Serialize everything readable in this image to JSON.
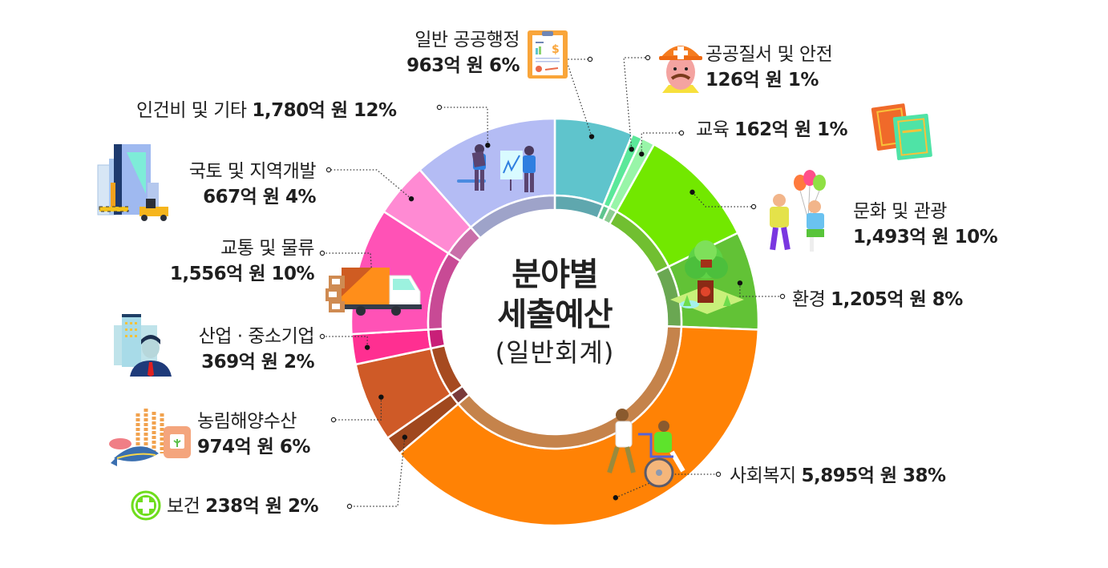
{
  "chart_data": {
    "type": "pie",
    "subtype": "donut",
    "title": "분야별 세출예산",
    "subtitle": "(일반회계)",
    "unit": "억 원",
    "start_angle_deg": 0,
    "direction": "clockwise",
    "categories": [
      "일반 공공행정",
      "공공질서 및 안전",
      "교육",
      "문화 및 관광",
      "환경",
      "사회복지",
      "보건",
      "농림해양수산",
      "산업·중소기업",
      "교통 및 물류",
      "국토 및 지역개발",
      "인건비 및 기타"
    ],
    "values": [
      963,
      126,
      162,
      1493,
      1205,
      5895,
      238,
      974,
      369,
      1556,
      667,
      1780
    ],
    "percents": [
      6,
      1,
      1,
      10,
      8,
      38,
      2,
      6,
      2,
      10,
      4,
      12
    ],
    "colors": [
      "#5fc4cc",
      "#5be89a",
      "#98f5a8",
      "#72e800",
      "#62c236",
      "#ff8205",
      "#a0481e",
      "#cf5a27",
      "#ff2f91",
      "#ff52b6",
      "#ff8ad3",
      "#b4bcf4"
    ],
    "inner_colors": [
      "#5fa7ae",
      "#5ec58f",
      "#8ccd92",
      "#71bf31",
      "#6aa752",
      "#c5834b",
      "#7a3a3a",
      "#a64a20",
      "#c91f78",
      "#c84a95",
      "#c96fa9",
      "#9ea3c9"
    ],
    "legend_position": "annotated-callouts"
  },
  "center": {
    "line1": "분야별",
    "line2": "세출예산",
    "line3": "(일반회계)"
  },
  "labels": [
    {
      "name": "일반 공공행정",
      "value": "963억 원 6%"
    },
    {
      "name": "공공질서 및 안전",
      "value": "126억 원 1%"
    },
    {
      "name": "교육",
      "value": "162억 원 1%"
    },
    {
      "name": "문화 및 관광",
      "value": "1,493억 원 10%"
    },
    {
      "name": "환경",
      "value": "1,205억 원 8%"
    },
    {
      "name": "사회복지",
      "value": "5,895억 원 38%"
    },
    {
      "name": "보건",
      "value": "238억 원 2%"
    },
    {
      "name": "농림해양수산",
      "value": "974억 원 6%"
    },
    {
      "name": "산업 · 중소기업",
      "value": "369억 원 2%"
    },
    {
      "name": "교통 및 물류",
      "value": "1,556억 원 10%"
    },
    {
      "name": "국토 및 지역개발",
      "value": "667억 원 4%"
    },
    {
      "name": "인건비 및 기타",
      "value": "1,780억 원 12%"
    }
  ],
  "icons": [
    "contract-document-icon",
    "safety-worker-icon",
    "books-icon",
    "balloons-family-icon",
    "forest-tree-icon",
    "wheelchair-care-icon",
    "health-cross-icon",
    "agriculture-fishery-icon",
    "business-person-icon",
    "delivery-truck-icon",
    "construction-building-icon",
    "business-meeting-icon"
  ]
}
